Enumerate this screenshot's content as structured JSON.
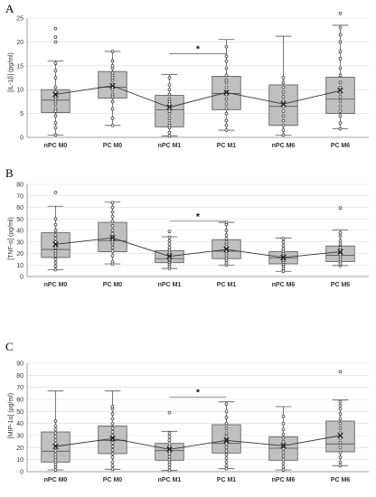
{
  "colors": {
    "box_fill": "#c0c0c0",
    "box_stroke": "#555555",
    "point_stroke": "#333333",
    "axis": "#888888",
    "grid": "#d9d9d9",
    "mean_line": "#333333"
  },
  "chart_data": [
    {
      "type": "box",
      "panel_letter": "A",
      "ylabel": "[IL-1β] (pg/ml)",
      "ylim": [
        0,
        25
      ],
      "yticks": [
        0,
        5,
        10,
        15,
        20,
        25
      ],
      "grid": true,
      "categories": [
        "nPC M0",
        "PC M0",
        "nPC M1",
        "PC M1",
        "nPC M6",
        "PC M6"
      ],
      "boxes": [
        {
          "min": 0.5,
          "q1": 5.2,
          "median": 7.8,
          "q3": 10.0,
          "max": 16.0,
          "mean": 9.0,
          "points": [
            0.5,
            2.0,
            3.0,
            4.5,
            5.5,
            6.0,
            7.0,
            7.5,
            8.0,
            8.5,
            9.0,
            9.5,
            10.5,
            12.5,
            14.0,
            15.5,
            20.0,
            21.0,
            22.8
          ]
        },
        {
          "min": 2.5,
          "q1": 8.2,
          "median": 10.5,
          "q3": 13.8,
          "max": 18.0,
          "mean": 10.8,
          "points": [
            2.5,
            4.0,
            6.0,
            7.5,
            8.5,
            9.0,
            10.0,
            10.5,
            11.0,
            12.0,
            12.5,
            13.0,
            13.5,
            14.5,
            15.0,
            16.0,
            18.0
          ]
        },
        {
          "min": 0.3,
          "q1": 2.2,
          "median": 5.8,
          "q3": 8.8,
          "max": 13.2,
          "mean": 6.3,
          "points": [
            0.3,
            1.0,
            2.0,
            2.5,
            3.0,
            4.0,
            5.0,
            5.5,
            6.0,
            7.0,
            7.5,
            8.0,
            9.0,
            10.0,
            11.0,
            12.5
          ]
        },
        {
          "min": 1.5,
          "q1": 5.8,
          "median": 9.2,
          "q3": 12.8,
          "max": 20.5,
          "mean": 9.4,
          "points": [
            1.5,
            2.5,
            3.5,
            5.0,
            6.0,
            7.0,
            8.0,
            9.0,
            9.5,
            10.5,
            11.5,
            12.0,
            13.0,
            14.5,
            16.0,
            17.0,
            19.0
          ]
        },
        {
          "min": 0.5,
          "q1": 2.5,
          "median": 6.5,
          "q3": 11.0,
          "max": 21.2,
          "mean": 7.0,
          "points": [
            0.5,
            1.5,
            2.5,
            3.5,
            4.5,
            5.5,
            6.5,
            7.5,
            8.5,
            9.5,
            10.5,
            11.5,
            12.5
          ]
        },
        {
          "min": 1.8,
          "q1": 5.0,
          "median": 8.0,
          "q3": 12.6,
          "max": 23.5,
          "mean": 9.8,
          "points": [
            1.8,
            3.0,
            4.5,
            5.5,
            6.5,
            7.5,
            8.5,
            9.5,
            10.5,
            11.5,
            13.0,
            14.5,
            16.5,
            18.0,
            20.0,
            21.5,
            23.0,
            26.0
          ]
        }
      ],
      "significance": {
        "from": "nPC M1",
        "to": "PC M1",
        "label": "*",
        "y": 17.5
      }
    },
    {
      "type": "box",
      "panel_letter": "B",
      "ylabel": "[TNF-α] (pg/ml)",
      "ylim": [
        0,
        80
      ],
      "yticks": [
        0,
        10,
        20,
        30,
        40,
        50,
        60,
        70,
        80
      ],
      "grid": true,
      "categories": [
        "nPC M0",
        "PC M0",
        "nPC M1",
        "PC M1",
        "nPC M6",
        "PC M6"
      ],
      "boxes": [
        {
          "min": 6.0,
          "q1": 16.5,
          "median": 23.5,
          "q3": 38.0,
          "max": 61.0,
          "mean": 28.0,
          "points": [
            6.0,
            9.0,
            12.0,
            15.0,
            18.0,
            20.0,
            22.0,
            25.0,
            27.0,
            30.0,
            33.0,
            36.0,
            40.0,
            45.0,
            50.0,
            73.0
          ]
        },
        {
          "min": 11.0,
          "q1": 21.5,
          "median": 31.0,
          "q3": 47.0,
          "max": 64.5,
          "mean": 33.5,
          "points": [
            11.0,
            13.0,
            18.0,
            22.0,
            25.0,
            28.0,
            30.0,
            32.0,
            34.0,
            37.0,
            40.0,
            44.0,
            48.0,
            52.0,
            56.0,
            60.0,
            64.0
          ]
        },
        {
          "min": 7.0,
          "q1": 12.0,
          "median": 15.5,
          "q3": 22.5,
          "max": 34.5,
          "mean": 17.5,
          "points": [
            7.0,
            9.0,
            11.0,
            12.5,
            14.0,
            15.0,
            16.5,
            18.0,
            19.5,
            21.0,
            23.0,
            25.0,
            28.0,
            31.0,
            34.0,
            39.0
          ]
        },
        {
          "min": 10.0,
          "q1": 15.5,
          "median": 22.0,
          "q3": 32.0,
          "max": 47.0,
          "mean": 23.5,
          "points": [
            10.0,
            12.0,
            14.0,
            16.0,
            18.0,
            20.0,
            22.0,
            24.0,
            26.0,
            28.0,
            30.0,
            33.0,
            36.0,
            40.0,
            45.0,
            47.0
          ]
        },
        {
          "min": 4.5,
          "q1": 11.0,
          "median": 16.0,
          "q3": 21.5,
          "max": 33.5,
          "mean": 16.5,
          "points": [
            4.5,
            7.0,
            9.0,
            11.0,
            12.5,
            14.0,
            15.5,
            17.0,
            18.5,
            20.0,
            22.0,
            24.0,
            27.0,
            30.0,
            33.0
          ]
        },
        {
          "min": 9.5,
          "q1": 13.0,
          "median": 18.5,
          "q3": 26.5,
          "max": 40.5,
          "mean": 21.5,
          "points": [
            9.5,
            11.0,
            13.0,
            15.0,
            17.0,
            19.0,
            21.0,
            23.0,
            25.0,
            28.0,
            31.0,
            35.0,
            38.0,
            59.5
          ]
        }
      ],
      "significance": {
        "from": "nPC M1",
        "to": "PC M1",
        "label": "*",
        "y": 48
      }
    },
    {
      "type": "box",
      "panel_letter": "C",
      "ylabel": "[MIP-1α] (pg/ml)",
      "ylim": [
        0,
        90
      ],
      "yticks": [
        0,
        10,
        20,
        30,
        40,
        50,
        60,
        70,
        80,
        90
      ],
      "grid": true,
      "categories": [
        "nPC M0",
        "PC M0",
        "nPC M1",
        "PC M1",
        "nPC M6",
        "PC M6"
      ],
      "boxes": [
        {
          "min": 1.5,
          "q1": 8.0,
          "median": 17.0,
          "q3": 33.0,
          "max": 67.0,
          "mean": 21.0,
          "points": [
            1.5,
            4.0,
            6.0,
            8.0,
            10.0,
            12.0,
            14.0,
            17.0,
            20.0,
            23.0,
            26.0,
            29.0,
            32.0,
            35.0,
            38.0,
            42.0
          ]
        },
        {
          "min": 2.0,
          "q1": 15.0,
          "median": 26.0,
          "q3": 38.0,
          "max": 67.0,
          "mean": 27.5,
          "points": [
            2.0,
            5.0,
            8.0,
            12.0,
            15.0,
            18.0,
            21.0,
            24.0,
            27.0,
            30.0,
            33.0,
            36.0,
            40.0,
            44.0,
            48.0,
            52.0,
            54.0
          ]
        },
        {
          "min": 1.0,
          "q1": 9.5,
          "median": 17.5,
          "q3": 23.5,
          "max": 33.5,
          "mean": 18.5,
          "points": [
            1.0,
            3.5,
            6.0,
            8.0,
            10.0,
            12.5,
            15.0,
            17.0,
            19.0,
            21.0,
            23.0,
            26.0,
            29.0,
            32.0,
            49.0
          ]
        },
        {
          "min": 2.5,
          "q1": 15.5,
          "median": 23.5,
          "q3": 39.0,
          "max": 58.0,
          "mean": 26.0,
          "points": [
            2.5,
            5.0,
            8.0,
            11.0,
            14.0,
            17.0,
            20.0,
            23.0,
            26.0,
            29.0,
            32.0,
            36.0,
            40.0,
            45.0,
            50.0,
            56.0
          ]
        },
        {
          "min": 1.5,
          "q1": 9.5,
          "median": 19.5,
          "q3": 29.0,
          "max": 54.0,
          "mean": 21.5,
          "points": [
            1.5,
            4.0,
            7.0,
            10.0,
            13.0,
            16.0,
            19.0,
            22.0,
            25.0,
            28.0,
            31.0,
            35.0,
            40.0,
            46.0
          ]
        },
        {
          "min": 5.0,
          "q1": 16.5,
          "median": 23.0,
          "q3": 42.0,
          "max": 59.5,
          "mean": 30.0,
          "points": [
            5.0,
            8.0,
            12.0,
            16.0,
            20.0,
            24.0,
            28.0,
            32.0,
            36.0,
            40.0,
            44.0,
            48.0,
            52.0,
            55.0,
            58.0,
            83.0
          ]
        }
      ],
      "significance": {
        "from": "nPC M1",
        "to": "PC M1",
        "label": "*",
        "y": 62
      }
    }
  ]
}
